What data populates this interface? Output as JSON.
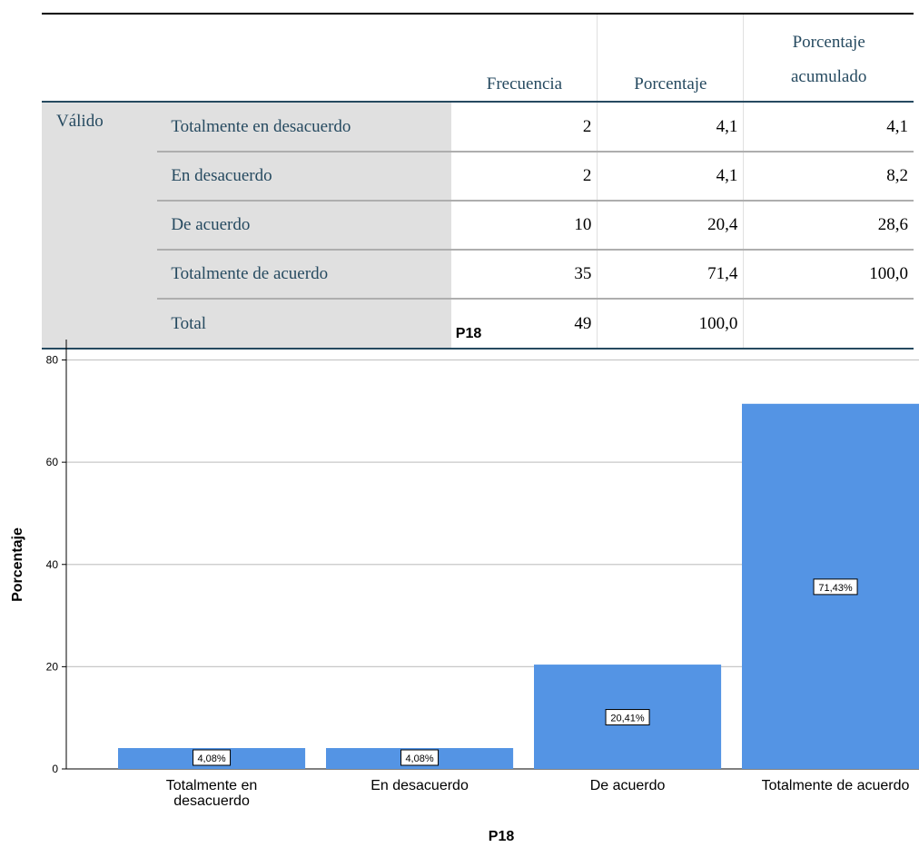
{
  "table": {
    "headers": {
      "frequency": "Frecuencia",
      "percent": "Porcentaje",
      "cumulative_line1": "Porcentaje",
      "cumulative_line2": "acumulado"
    },
    "group_label": "Válido",
    "rows": [
      {
        "label": "Totalmente en desacuerdo",
        "frequency": "2",
        "percent": "4,1",
        "cumulative": "4,1"
      },
      {
        "label": "En desacuerdo",
        "frequency": "2",
        "percent": "4,1",
        "cumulative": "8,2"
      },
      {
        "label": "De acuerdo",
        "frequency": "10",
        "percent": "20,4",
        "cumulative": "28,6"
      },
      {
        "label": "Totalmente de acuerdo",
        "frequency": "35",
        "percent": "71,4",
        "cumulative": "100,0"
      },
      {
        "label": "Total",
        "frequency": "49",
        "percent": "100,0",
        "cumulative": ""
      }
    ]
  },
  "chart_data": {
    "type": "bar",
    "title": "P18",
    "xlabel": "P18",
    "ylabel": "Porcentaje",
    "categories": [
      [
        "Totalmente en",
        "desacuerdo"
      ],
      [
        "En desacuerdo"
      ],
      [
        "De acuerdo"
      ],
      [
        "Totalmente de acuerdo"
      ]
    ],
    "values": [
      4.08,
      4.08,
      20.41,
      71.43
    ],
    "data_labels": [
      "4,08%",
      "4,08%",
      "20,41%",
      "71,43%"
    ],
    "yticks": [
      0,
      20,
      40,
      60,
      80
    ],
    "ylim": [
      0,
      84
    ],
    "grid": true,
    "bar_color": "#5494e4",
    "grid_color": "#c8c8c8"
  }
}
